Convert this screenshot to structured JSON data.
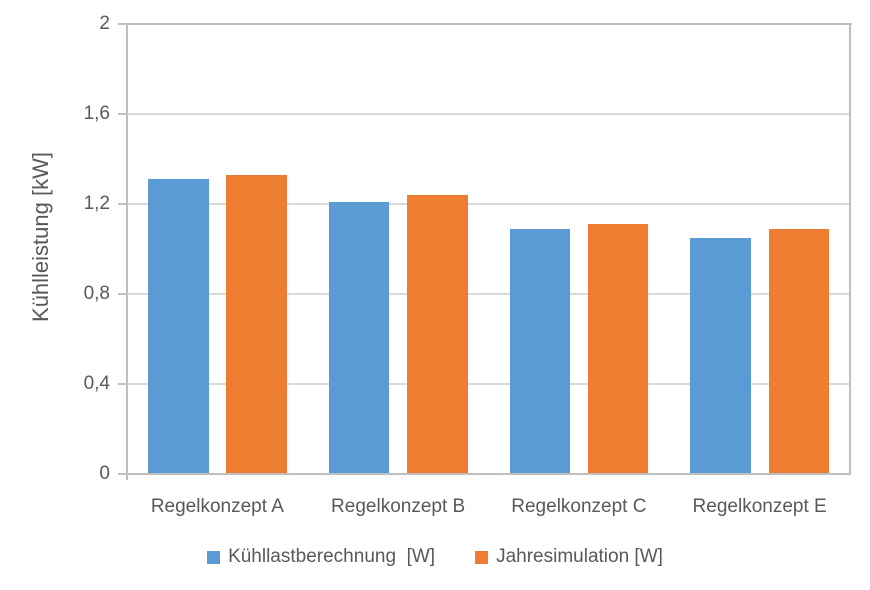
{
  "chart_data": {
    "type": "bar",
    "title": "",
    "categories": [
      "Regelkonzept A",
      "Regelkonzept B",
      "Regelkonzept C",
      "Regelkonzept E"
    ],
    "series": [
      {
        "name": "Kühllastberechnung  [W]",
        "color": "#5B9BD5",
        "values": [
          1.31,
          1.21,
          1.09,
          1.05
        ]
      },
      {
        "name": "Jahresimulation [W]",
        "color": "#ED7D31",
        "values": [
          1.33,
          1.24,
          1.11,
          1.09
        ]
      }
    ],
    "xlabel": "",
    "ylabel": "Kühlleistung [kW]",
    "ylim": [
      0,
      2
    ],
    "ytick_step": 0.4,
    "ytick_labels": [
      "0",
      "0,4",
      "0,8",
      "1,2",
      "1,6",
      "2"
    ],
    "grid": true,
    "legend_position": "bottom"
  },
  "colors": {
    "gridline": "#D9D9D9",
    "axis_line": "#BFBFBF",
    "text": "#595959",
    "background": "#FFFFFF"
  }
}
